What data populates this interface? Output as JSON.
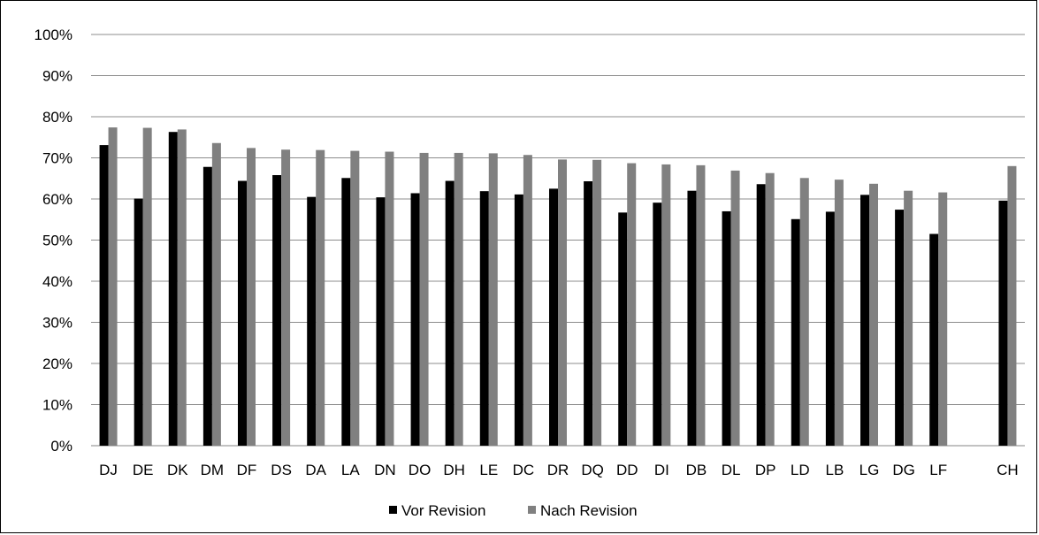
{
  "chart_data": {
    "type": "bar",
    "categories": [
      "DJ",
      "DE",
      "DK",
      "DM",
      "DF",
      "DS",
      "DA",
      "LA",
      "DN",
      "DO",
      "DH",
      "LE",
      "DC",
      "DR",
      "DQ",
      "DD",
      "DI",
      "DB",
      "DL",
      "DP",
      "LD",
      "LB",
      "LG",
      "DG",
      "LF",
      "",
      "CH"
    ],
    "series": [
      {
        "name": "Vor Revision",
        "color": "#000000",
        "values": [
          73.1,
          60.1,
          76.3,
          67.8,
          64.4,
          65.8,
          60.5,
          65.1,
          60.4,
          61.4,
          64.4,
          61.9,
          61.1,
          62.5,
          64.3,
          56.7,
          59.1,
          62.0,
          57.0,
          63.6,
          55.1,
          56.9,
          61.0,
          57.4,
          51.5,
          null,
          59.6
        ]
      },
      {
        "name": "Nach Revision",
        "color": "#808080",
        "values": [
          77.4,
          77.3,
          76.9,
          73.6,
          72.4,
          72.0,
          71.9,
          71.7,
          71.5,
          71.2,
          71.2,
          71.1,
          70.7,
          69.6,
          69.5,
          68.7,
          68.4,
          68.2,
          66.9,
          66.3,
          65.1,
          64.7,
          63.7,
          62.0,
          61.6,
          null,
          68.0
        ]
      }
    ],
    "yticks": [
      "0%",
      "10%",
      "20%",
      "30%",
      "40%",
      "50%",
      "60%",
      "70%",
      "80%",
      "90%",
      "100%"
    ],
    "ylim": [
      0,
      100
    ],
    "grid": true,
    "legend_position": "bottom",
    "title": "",
    "xlabel": "",
    "ylabel": ""
  }
}
